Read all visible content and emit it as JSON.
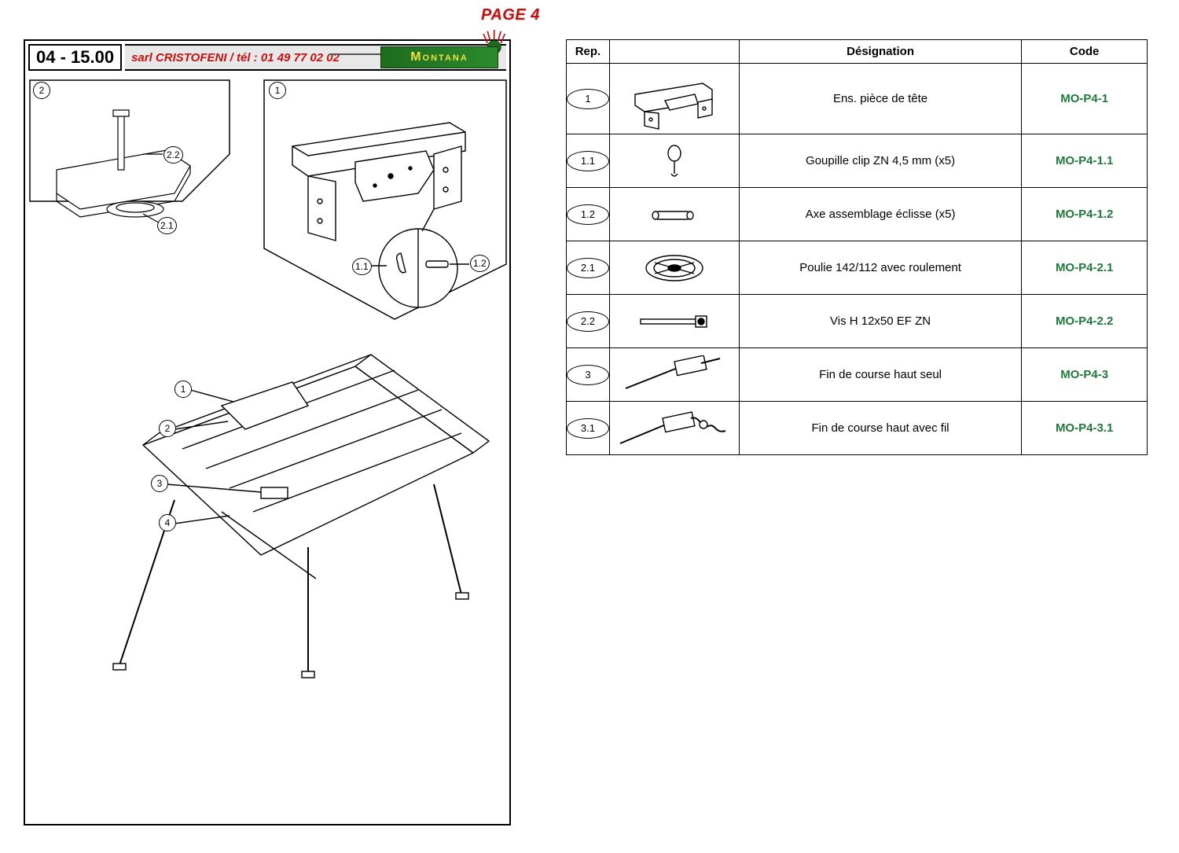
{
  "page_label": "PAGE 4",
  "header": {
    "doc_number": "04 - 15.00",
    "contact": "sarl CRISTOFENI / tél : 01 49 77 02 02",
    "brand": "Montana"
  },
  "diagram_callouts": {
    "top_left_panel": "2",
    "top_right_panel": "1",
    "sub_21": "2.1",
    "sub_22": "2.2",
    "sub_11": "1.1",
    "sub_12": "1.2",
    "main_1": "1",
    "main_2": "2",
    "main_3": "3",
    "main_4": "4"
  },
  "table": {
    "headers": {
      "rep": "Rep.",
      "img": "",
      "designation": "Désignation",
      "code": "Code"
    },
    "rows": [
      {
        "rep": "1",
        "designation": "Ens. pièce de tête",
        "code": "MO-P4-1",
        "tall": true,
        "icon": "head-piece"
      },
      {
        "rep": "1.1",
        "designation": "Goupille clip ZN 4,5 mm (x5)",
        "code": "MO-P4-1.1",
        "tall": false,
        "icon": "clip-pin"
      },
      {
        "rep": "1.2",
        "designation": "Axe assemblage éclisse (x5)",
        "code": "MO-P4-1.2",
        "tall": false,
        "icon": "axle-pin"
      },
      {
        "rep": "2.1",
        "designation": "Poulie 142/112 avec roulement",
        "code": "MO-P4-2.1",
        "tall": false,
        "icon": "pulley"
      },
      {
        "rep": "2.2",
        "designation": "Vis H 12x50 EF ZN",
        "code": "MO-P4-2.2",
        "tall": false,
        "icon": "bolt"
      },
      {
        "rep": "3",
        "designation": "Fin de course haut seul",
        "code": "MO-P4-3",
        "tall": false,
        "icon": "limit-switch"
      },
      {
        "rep": "3.1",
        "designation": "Fin de course haut avec fil",
        "code": "MO-P4-3.1",
        "tall": false,
        "icon": "limit-switch-wire"
      }
    ]
  },
  "colors": {
    "page_label": "#c41010",
    "contact_text": "#c41010",
    "brand_bg_from": "#1e6b1e",
    "brand_bg_to": "#2c8b2c",
    "brand_text": "#f0e040",
    "code_text": "#1e7a3a",
    "border": "#000000",
    "background": "#ffffff"
  }
}
